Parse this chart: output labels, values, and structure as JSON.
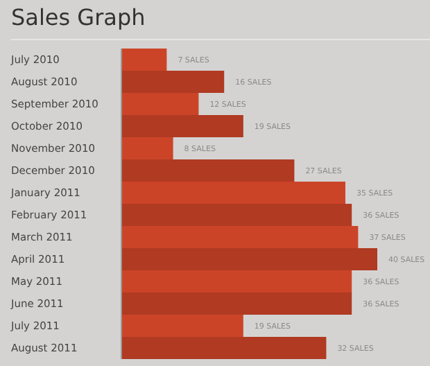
{
  "chart_data": {
    "type": "bar",
    "title": "Sales Graph",
    "orientation": "horizontal",
    "categories": [
      "July 2010",
      "August 2010",
      "September 2010",
      "October 2010",
      "November 2010",
      "December 2010",
      "January 2011",
      "February 2011",
      "March 2011",
      "April 2011",
      "May 2011",
      "June 2011",
      "July 2011",
      "August 2011"
    ],
    "values": [
      7,
      16,
      12,
      19,
      8,
      27,
      35,
      36,
      37,
      40,
      36,
      36,
      19,
      32
    ],
    "colors": [
      "#cc4428",
      "#b03a22",
      "#cc4428",
      "#b03a22",
      "#cc4428",
      "#b03a22",
      "#cc4428",
      "#b03a22",
      "#cc4428",
      "#b03a22",
      "#cc4428",
      "#b03a22",
      "#cc4428",
      "#b03a22"
    ],
    "value_labels": [
      "7 SALES",
      "16 SALES",
      "12 SALES",
      "19 SALES",
      "8 SALES",
      "27 SALES",
      "35 SALES",
      "36 SALES",
      "37 SALES",
      "40 SALES",
      "36 SALES",
      "36 SALES",
      "19 SALES",
      "32 SALES"
    ]
  }
}
